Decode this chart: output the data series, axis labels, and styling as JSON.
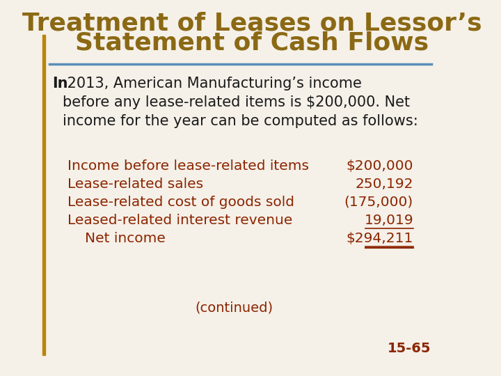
{
  "title_line1": "Treatment of Leases on Lessor’s",
  "title_line2": "Statement of Cash Flows",
  "title_color": "#8B6914",
  "title_fontsize": 26,
  "title_bold": true,
  "bg_color": "#F5F0E8",
  "left_bar_color": "#B8860B",
  "top_line_color": "#5B8DB8",
  "body_text_color": "#1a1a1a",
  "table_text_color": "#8B2500",
  "intro_bold_word": "In",
  "intro_text": " 2013, American Manufacturing’s income\nbefore any lease-related items is $200,000. Net\nincome for the year can be computed as follows:",
  "intro_fontsize": 15,
  "table_fontsize": 14.5,
  "table_rows": [
    {
      "label": "Income before lease-related items",
      "value": "$200,000",
      "indent": false,
      "underline_value": false
    },
    {
      "label": "Lease-related sales",
      "value": "250,192",
      "indent": false,
      "underline_value": false
    },
    {
      "label": "Lease-related cost of goods sold",
      "value": "(175,000)",
      "indent": false,
      "underline_value": false
    },
    {
      "label": "Leased-related interest revenue",
      "value": "19,019",
      "indent": false,
      "underline_value": true
    },
    {
      "label": "Net income",
      "value": "$294,211",
      "indent": true,
      "underline_value": true
    }
  ],
  "continued_text": "(continued)",
  "continued_fontsize": 14,
  "page_number": "15-65",
  "page_fontsize": 14
}
